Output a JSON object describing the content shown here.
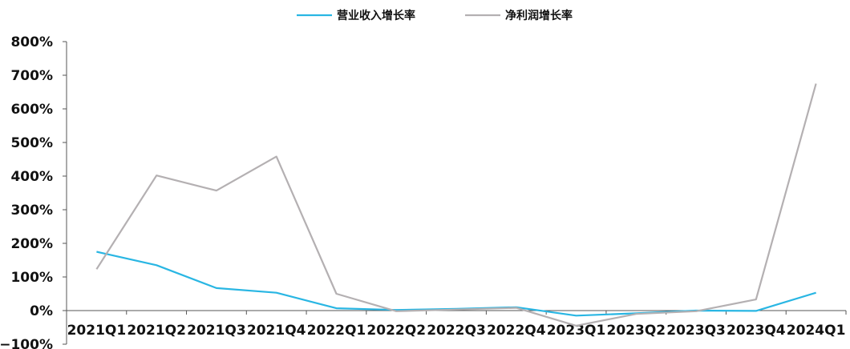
{
  "chart_data": {
    "type": "line",
    "categories": [
      "2021Q1",
      "2021Q2",
      "2021Q3",
      "2021Q4",
      "2022Q1",
      "2022Q2",
      "2022Q3",
      "2022Q4",
      "2023Q1",
      "2023Q2",
      "2023Q3",
      "2023Q4",
      "2024Q1"
    ],
    "series": [
      {
        "name": "营业收入增长率",
        "color": "#29b6e3",
        "values": [
          175,
          135,
          67,
          53,
          7,
          2,
          5,
          10,
          -15,
          -8,
          0,
          -1,
          53
        ]
      },
      {
        "name": "净利润增长率",
        "color": "#b4b0b2",
        "values": [
          123,
          402,
          357,
          458,
          50,
          -2,
          3,
          8,
          -45,
          -10,
          -2,
          33,
          675
        ]
      }
    ],
    "ylim": [
      -100,
      800
    ],
    "yticks": [
      -100,
      0,
      100,
      200,
      300,
      400,
      500,
      600,
      700,
      800
    ],
    "ytick_suffix": "%",
    "legend_position": "top-center",
    "grid": false
  }
}
